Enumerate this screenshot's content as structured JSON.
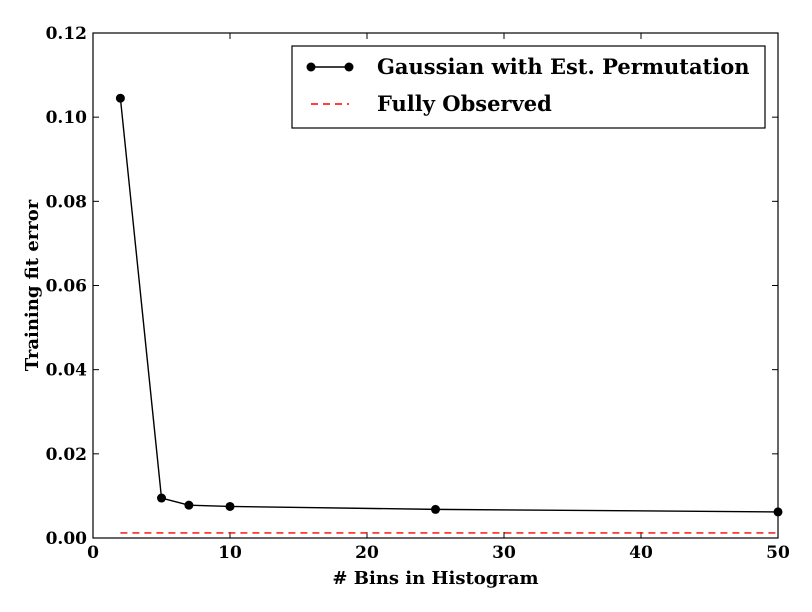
{
  "chart_data": {
    "type": "line",
    "title": "",
    "xlabel": "# Bins in Histogram",
    "ylabel": "Training fit error",
    "xlim": [
      0,
      50
    ],
    "ylim": [
      0,
      0.12
    ],
    "xticks": [
      0,
      10,
      20,
      30,
      40,
      50
    ],
    "xtick_labels": [
      "0",
      "10",
      "20",
      "30",
      "40",
      "50"
    ],
    "yticks": [
      0.0,
      0.02,
      0.04,
      0.06,
      0.08,
      0.1,
      0.12
    ],
    "ytick_labels": [
      "0.00",
      "0.02",
      "0.04",
      "0.06",
      "0.08",
      "0.10",
      "0.12"
    ],
    "grid": false,
    "legend_position": "top-right",
    "series": [
      {
        "name": "Gaussian with Est. Permutation",
        "style": "solid-with-markers",
        "color": "#000000",
        "x": [
          2,
          5,
          7,
          10,
          25,
          50
        ],
        "y": [
          0.1045,
          0.0095,
          0.0078,
          0.0075,
          0.0068,
          0.0062
        ]
      },
      {
        "name": "Fully Observed",
        "style": "dashed",
        "color": "#ff0000",
        "x": [
          2,
          50
        ],
        "y": [
          0.0012,
          0.0012
        ]
      }
    ]
  }
}
